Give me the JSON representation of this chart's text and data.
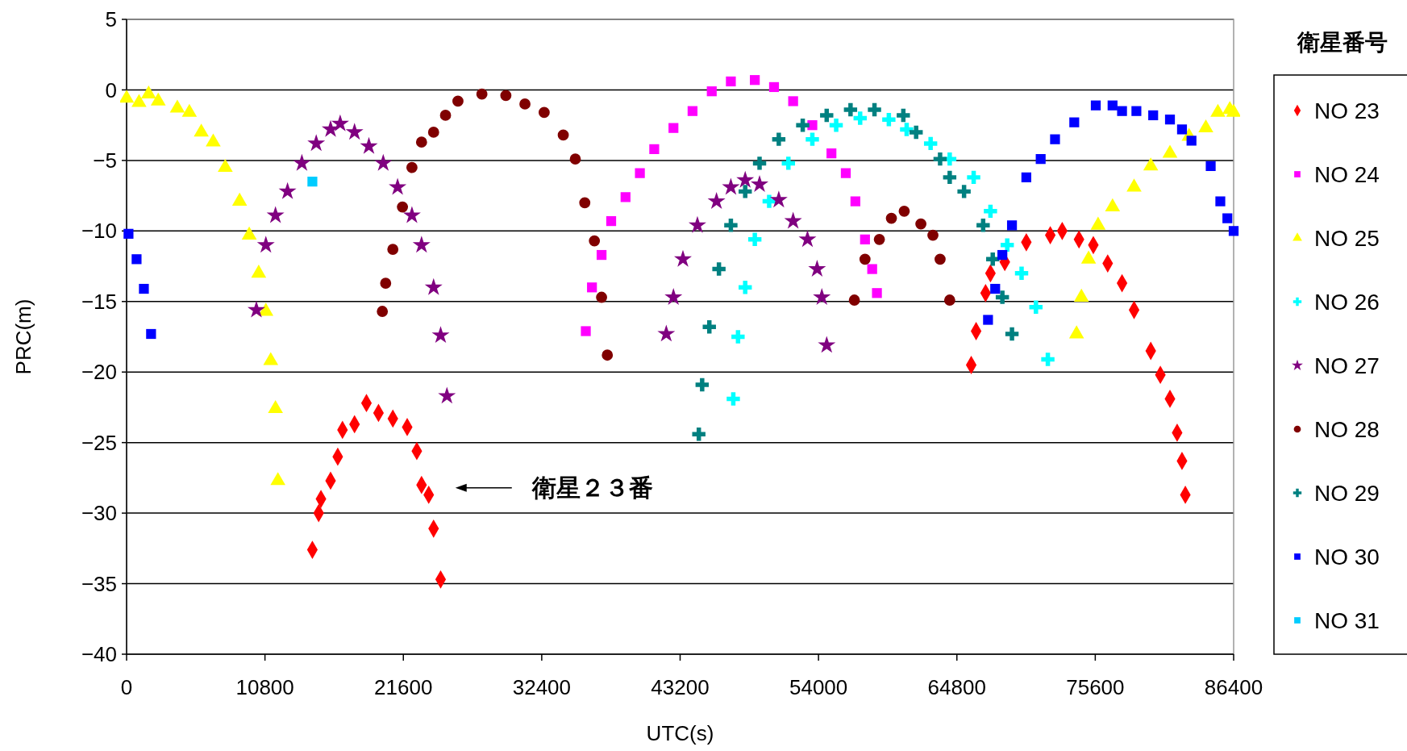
{
  "chart_data": {
    "type": "scatter",
    "xlabel": "UTC(s)",
    "ylabel": "PRC(m)",
    "legend_title": "衛星番号",
    "legend": "right",
    "grid": "y",
    "xlim": [
      0,
      86400
    ],
    "xticks": [
      0,
      10800,
      21600,
      32400,
      43200,
      54000,
      64800,
      75600,
      86400
    ],
    "ylim": [
      -40,
      5
    ],
    "yticks": [
      -40,
      -35,
      -30,
      -25,
      -20,
      -15,
      -10,
      -5,
      0,
      5
    ],
    "annotations": [
      "衛星２３番"
    ],
    "series": [
      {
        "name": "NO 23",
        "color": "#ff0000",
        "marker": "diamond",
        "x": [
          14500,
          14990,
          15170,
          15920,
          16480,
          16850,
          17790,
          18720,
          19660,
          20780,
          21900,
          22650,
          23020,
          23580,
          23960,
          24510,
          65920,
          66300,
          67040,
          67420,
          68540,
          70220,
          72090,
          73020,
          74330,
          75450,
          76570,
          77690,
          78630,
          79930,
          80680,
          81430,
          81990,
          82370,
          82630
        ],
        "values": [
          -32.6,
          -30.0,
          -29,
          -27.7,
          -26,
          -24.1,
          -23.7,
          -22.2,
          -22.9,
          -23.3,
          -23.9,
          -25.6,
          -28,
          -28.7,
          -31.1,
          -34.7,
          -19.5,
          -17.1,
          -14.4,
          -13,
          -12.2,
          -10.8,
          -10.3,
          -10,
          -10.6,
          -11,
          -12.3,
          -13.7,
          -15.6,
          -18.5,
          -20.2,
          -21.9,
          -24.3,
          -26.3,
          -28.7
        ]
      },
      {
        "name": "NO 24",
        "color": "#ff00ff",
        "marker": "square",
        "x": [
          35840,
          36320,
          37070,
          37820,
          38940,
          40060,
          41180,
          42680,
          44170,
          45670,
          47160,
          49030,
          50530,
          52020,
          53520,
          55010,
          56130,
          56880,
          57630,
          58190,
          58560
        ],
        "values": [
          -17.1,
          -14,
          -11.7,
          -9.3,
          -7.6,
          -5.9,
          -4.2,
          -2.7,
          -1.5,
          -0.1,
          0.6,
          0.7,
          0.2,
          -0.8,
          -2.5,
          -4.5,
          -5.9,
          -7.9,
          -10.6,
          -12.7,
          -14.4
        ]
      },
      {
        "name": "NO 25",
        "color": "#ffff00",
        "marker": "triangle",
        "x": [
          0,
          970,
          1720,
          2470,
          3960,
          4900,
          5830,
          6760,
          7700,
          8820,
          9570,
          10310,
          10870,
          11250,
          11620,
          11810,
          74140,
          74520,
          75080,
          75820,
          76950,
          78630,
          79930,
          81430,
          82920,
          84230,
          85170,
          86100,
          86400
        ],
        "values": [
          -0.6,
          -0.9,
          -0.3,
          -0.8,
          -1.3,
          -1.6,
          -3.0,
          -3.7,
          -5.5,
          -7.9,
          -10.3,
          -13,
          -15.7,
          -19.2,
          -22.6,
          -27.7,
          -17.3,
          -14.7,
          -12,
          -9.6,
          -8.3,
          -6.9,
          -5.4,
          -4.5,
          -3.3,
          -2.7,
          -1.6,
          -1.4,
          -1.6
        ]
      },
      {
        "name": "NO 26",
        "color": "#00ffff",
        "marker": "cross",
        "x": [
          47350,
          47720,
          48280,
          49030,
          50150,
          51650,
          53520,
          55380,
          57250,
          59490,
          60880,
          62750,
          64240,
          66110,
          67420,
          68730,
          69850,
          70970,
          71900
        ],
        "values": [
          -21.9,
          -17.5,
          -14,
          -10.6,
          -7.9,
          -5.2,
          -3.5,
          -2.5,
          -2.0,
          -2.1,
          -2.8,
          -3.8,
          -4.9,
          -6.2,
          -8.6,
          -11,
          -13,
          -15.4,
          -19.1
        ]
      },
      {
        "name": "NO 27",
        "color": "#800080",
        "marker": "star",
        "x": [
          10130,
          10870,
          11620,
          12560,
          13680,
          14800,
          15920,
          16670,
          17790,
          18910,
          20030,
          21150,
          22270,
          23020,
          23960,
          24510,
          25000,
          42120,
          42680,
          43420,
          44550,
          46040,
          47160,
          48280,
          49400,
          50900,
          52020,
          53140,
          53890,
          54260,
          54640
        ],
        "values": [
          -15.6,
          -11,
          -8.9,
          -7.2,
          -5.2,
          -3.8,
          -2.8,
          -2.4,
          -3.0,
          -4.0,
          -5.2,
          -6.9,
          -8.9,
          -11,
          -14,
          -17.4,
          -21.7,
          -17.3,
          -14.7,
          -12,
          -9.6,
          -7.9,
          -6.9,
          -6.4,
          -6.7,
          -7.8,
          -9.3,
          -10.6,
          -12.7,
          -14.7,
          -18.1
        ]
      },
      {
        "name": "NO 28",
        "color": "#800000",
        "marker": "circle",
        "x": [
          19960,
          20220,
          20780,
          21530,
          22270,
          23020,
          23960,
          24890,
          25860,
          27730,
          29600,
          31090,
          32590,
          34080,
          35020,
          35760,
          36510,
          37070,
          37520,
          56800,
          57630,
          58750,
          59690,
          60690,
          61990,
          62930,
          63490,
          64240
        ],
        "values": [
          -15.7,
          -13.7,
          -11.3,
          -8.3,
          -5.5,
          -3.7,
          -3.0,
          -1.8,
          -0.8,
          -0.3,
          -0.4,
          -1.0,
          -1.6,
          -3.2,
          -4.9,
          -8.0,
          -10.7,
          -14.7,
          -18.8,
          -14.9,
          -12,
          -10.6,
          -9.1,
          -8.6,
          -9.5,
          -10.3,
          -12,
          -14.9
        ]
      },
      {
        "name": "NO 29",
        "color": "#008080",
        "marker": "cross",
        "x": [
          44660,
          44920,
          45480,
          46230,
          47160,
          48280,
          49400,
          50900,
          52770,
          54640,
          56500,
          58370,
          60620,
          61620,
          63490,
          64240,
          65360,
          66850,
          67600,
          68350,
          69100
        ],
        "values": [
          -24.4,
          -20.9,
          -16.8,
          -12.7,
          -9.6,
          -7.2,
          -5.2,
          -3.5,
          -2.5,
          -1.8,
          -1.4,
          -1.4,
          -1.8,
          -3.0,
          -4.9,
          -6.2,
          -7.2,
          -9.6,
          -12,
          -14.7,
          -17.3
        ]
      },
      {
        "name": "NO 30",
        "color": "#0000ff",
        "marker": "square",
        "x": [
          150,
          780,
          1350,
          1910,
          67230,
          67790,
          68350,
          69100,
          70220,
          71340,
          72460,
          73960,
          75640,
          76950,
          77690,
          78810,
          80120,
          81430,
          82370,
          83110,
          84610,
          85360,
          85910,
          86400
        ],
        "values": [
          -10.2,
          -12,
          -14.1,
          -17.3,
          -16.3,
          -14.1,
          -11.7,
          -9.6,
          -6.2,
          -4.9,
          -3.5,
          -2.3,
          -1.1,
          -1.1,
          -1.5,
          -1.5,
          -1.8,
          -2.1,
          -2.8,
          -3.6,
          -5.4,
          -7.9,
          -9.1,
          -10
        ]
      },
      {
        "name": "NO 31",
        "color": "#00ccff",
        "marker": "square",
        "x": [
          14500
        ],
        "values": [
          -6.5
        ]
      }
    ]
  }
}
